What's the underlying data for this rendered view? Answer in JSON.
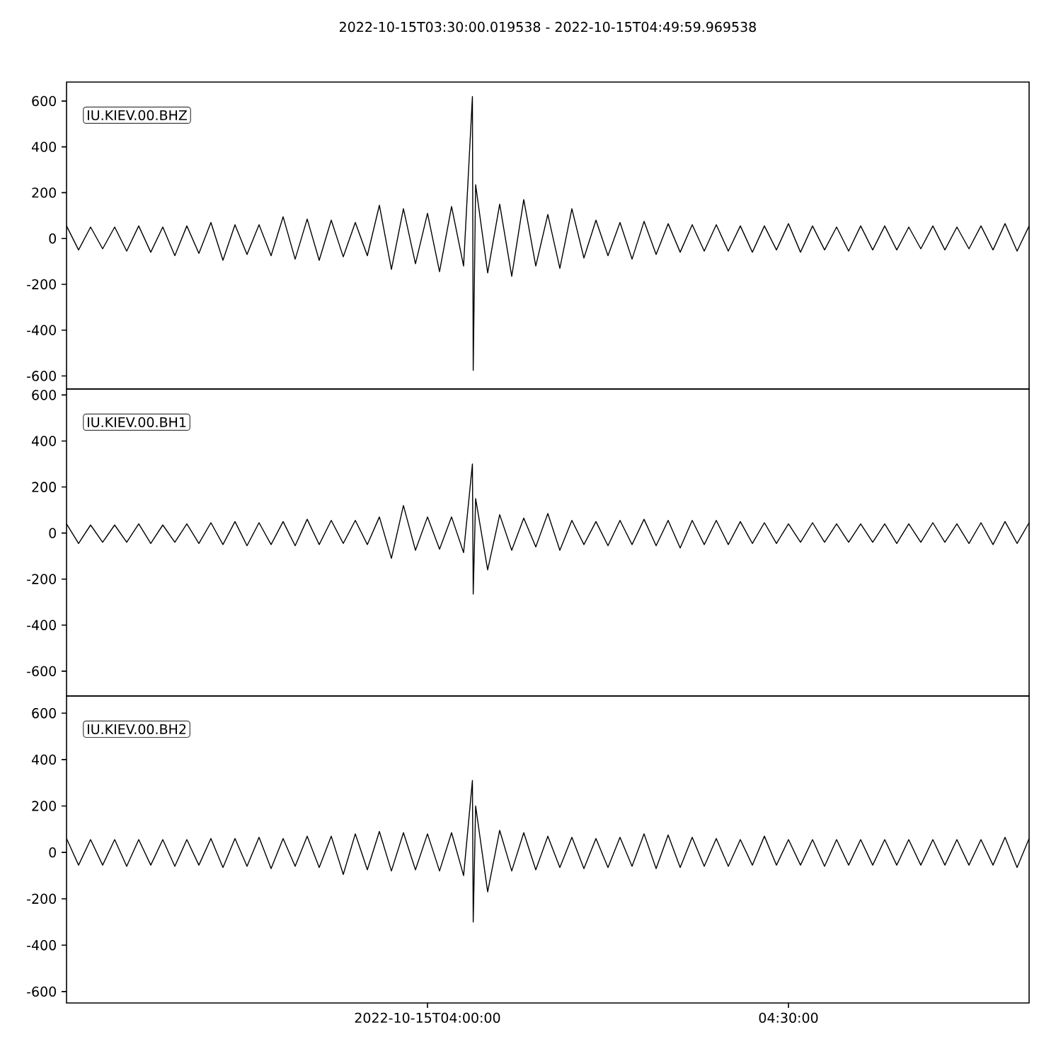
{
  "chart_data": [
    {
      "type": "line",
      "title": "2022-10-15T03:30:00.019538  -  2022-10-15T04:49:59.969538",
      "annotations": [
        "IU.KIEV.00.BHZ"
      ],
      "tick_labels": "y",
      "x": [
        "2022-10-15T03:30",
        "2022-10-15T03:31",
        "2022-10-15T03:32",
        "2022-10-15T03:33",
        "2022-10-15T03:34",
        "2022-10-15T03:35",
        "2022-10-15T03:36",
        "2022-10-15T03:37",
        "2022-10-15T03:38",
        "2022-10-15T03:39",
        "2022-10-15T03:40",
        "2022-10-15T03:41",
        "2022-10-15T03:42",
        "2022-10-15T03:43",
        "2022-10-15T03:44",
        "2022-10-15T03:45",
        "2022-10-15T03:46",
        "2022-10-15T03:47",
        "2022-10-15T03:48",
        "2022-10-15T03:49",
        "2022-10-15T03:50",
        "2022-10-15T03:51",
        "2022-10-15T03:52",
        "2022-10-15T03:53",
        "2022-10-15T03:54",
        "2022-10-15T03:55",
        "2022-10-15T03:56",
        "2022-10-15T03:57",
        "2022-10-15T03:58",
        "2022-10-15T03:59",
        "2022-10-15T04:00",
        "2022-10-15T04:01",
        "2022-10-15T04:02",
        "2022-10-15T04:03",
        "2022-10-15T04:03:44",
        "2022-10-15T04:03:48",
        "2022-10-15T04:04",
        "2022-10-15T04:05",
        "2022-10-15T04:06",
        "2022-10-15T04:07",
        "2022-10-15T04:08",
        "2022-10-15T04:09",
        "2022-10-15T04:10",
        "2022-10-15T04:11",
        "2022-10-15T04:12",
        "2022-10-15T04:13",
        "2022-10-15T04:14",
        "2022-10-15T04:15",
        "2022-10-15T04:16",
        "2022-10-15T04:17",
        "2022-10-15T04:18",
        "2022-10-15T04:19",
        "2022-10-15T04:20",
        "2022-10-15T04:21",
        "2022-10-15T04:22",
        "2022-10-15T04:23",
        "2022-10-15T04:24",
        "2022-10-15T04:25",
        "2022-10-15T04:26",
        "2022-10-15T04:27",
        "2022-10-15T04:28",
        "2022-10-15T04:29",
        "2022-10-15T04:30",
        "2022-10-15T04:31",
        "2022-10-15T04:32",
        "2022-10-15T04:33",
        "2022-10-15T04:34",
        "2022-10-15T04:35",
        "2022-10-15T04:36",
        "2022-10-15T04:37",
        "2022-10-15T04:38",
        "2022-10-15T04:39",
        "2022-10-15T04:40",
        "2022-10-15T04:41",
        "2022-10-15T04:42",
        "2022-10-15T04:43",
        "2022-10-15T04:44",
        "2022-10-15T04:45",
        "2022-10-15T04:46",
        "2022-10-15T04:47",
        "2022-10-15T04:48",
        "2022-10-15T04:49",
        "2022-10-15T04:50"
      ],
      "series": [
        {
          "color": "#000000",
          "values": [
            55,
            -50,
            50,
            -45,
            50,
            -55,
            55,
            -60,
            50,
            -75,
            55,
            -65,
            70,
            -95,
            60,
            -70,
            60,
            -75,
            95,
            -90,
            85,
            -95,
            80,
            -80,
            70,
            -75,
            145,
            -135,
            130,
            -110,
            110,
            -145,
            140,
            -120,
            620,
            -575,
            235,
            -150,
            150,
            -165,
            170,
            -120,
            105,
            -130,
            130,
            -85,
            80,
            -75,
            70,
            -90,
            75,
            -70,
            65,
            -60,
            60,
            -55,
            60,
            -55,
            55,
            -60,
            55,
            -50,
            65,
            -60,
            55,
            -50,
            50,
            -55,
            55,
            -50,
            55,
            -50,
            50,
            -45,
            55,
            -50,
            50,
            -45,
            55,
            -50,
            65,
            -55,
            55
          ]
        }
      ],
      "xlim": [
        "2022-10-15T03:30",
        "2022-10-15T04:50"
      ],
      "ylim": [
        -657,
        683
      ],
      "yticks": [
        -600,
        -400,
        -200,
        0,
        200,
        400,
        600
      ]
    },
    {
      "type": "line",
      "annotations": [
        "IU.KIEV.00.BH1"
      ],
      "tick_labels": "y",
      "x": [
        "2022-10-15T03:30",
        "2022-10-15T03:31",
        "2022-10-15T03:32",
        "2022-10-15T03:33",
        "2022-10-15T03:34",
        "2022-10-15T03:35",
        "2022-10-15T03:36",
        "2022-10-15T03:37",
        "2022-10-15T03:38",
        "2022-10-15T03:39",
        "2022-10-15T03:40",
        "2022-10-15T03:41",
        "2022-10-15T03:42",
        "2022-10-15T03:43",
        "2022-10-15T03:44",
        "2022-10-15T03:45",
        "2022-10-15T03:46",
        "2022-10-15T03:47",
        "2022-10-15T03:48",
        "2022-10-15T03:49",
        "2022-10-15T03:50",
        "2022-10-15T03:51",
        "2022-10-15T03:52",
        "2022-10-15T03:53",
        "2022-10-15T03:54",
        "2022-10-15T03:55",
        "2022-10-15T03:56",
        "2022-10-15T03:57",
        "2022-10-15T03:58",
        "2022-10-15T03:59",
        "2022-10-15T04:00",
        "2022-10-15T04:01",
        "2022-10-15T04:02",
        "2022-10-15T04:03",
        "2022-10-15T04:03:44",
        "2022-10-15T04:03:48",
        "2022-10-15T04:04",
        "2022-10-15T04:05",
        "2022-10-15T04:06",
        "2022-10-15T04:07",
        "2022-10-15T04:08",
        "2022-10-15T04:09",
        "2022-10-15T04:10",
        "2022-10-15T04:11",
        "2022-10-15T04:12",
        "2022-10-15T04:13",
        "2022-10-15T04:14",
        "2022-10-15T04:15",
        "2022-10-15T04:16",
        "2022-10-15T04:17",
        "2022-10-15T04:18",
        "2022-10-15T04:19",
        "2022-10-15T04:20",
        "2022-10-15T04:21",
        "2022-10-15T04:22",
        "2022-10-15T04:23",
        "2022-10-15T04:24",
        "2022-10-15T04:25",
        "2022-10-15T04:26",
        "2022-10-15T04:27",
        "2022-10-15T04:28",
        "2022-10-15T04:29",
        "2022-10-15T04:30",
        "2022-10-15T04:31",
        "2022-10-15T04:32",
        "2022-10-15T04:33",
        "2022-10-15T04:34",
        "2022-10-15T04:35",
        "2022-10-15T04:36",
        "2022-10-15T04:37",
        "2022-10-15T04:38",
        "2022-10-15T04:39",
        "2022-10-15T04:40",
        "2022-10-15T04:41",
        "2022-10-15T04:42",
        "2022-10-15T04:43",
        "2022-10-15T04:44",
        "2022-10-15T04:45",
        "2022-10-15T04:46",
        "2022-10-15T04:47",
        "2022-10-15T04:48",
        "2022-10-15T04:49",
        "2022-10-15T04:50"
      ],
      "series": [
        {
          "color": "#000000",
          "values": [
            40,
            -45,
            35,
            -40,
            35,
            -40,
            40,
            -45,
            35,
            -40,
            40,
            -45,
            45,
            -50,
            50,
            -55,
            45,
            -50,
            50,
            -55,
            60,
            -50,
            55,
            -45,
            55,
            -50,
            70,
            -110,
            120,
            -75,
            70,
            -70,
            70,
            -85,
            300,
            -265,
            150,
            -160,
            80,
            -75,
            65,
            -60,
            85,
            -75,
            55,
            -50,
            50,
            -55,
            55,
            -50,
            60,
            -55,
            55,
            -65,
            55,
            -50,
            55,
            -50,
            50,
            -45,
            45,
            -45,
            40,
            -40,
            45,
            -40,
            40,
            -40,
            40,
            -40,
            40,
            -45,
            40,
            -40,
            45,
            -40,
            40,
            -45,
            45,
            -50,
            50,
            -45,
            45
          ]
        }
      ],
      "xlim": [
        "2022-10-15T03:30",
        "2022-10-15T04:50"
      ],
      "ylim": [
        -708,
        626
      ],
      "yticks": [
        -600,
        -400,
        -200,
        0,
        200,
        400,
        600
      ]
    },
    {
      "type": "line",
      "annotations": [
        "IU.KIEV.00.BH2"
      ],
      "x": [
        "2022-10-15T03:30",
        "2022-10-15T03:31",
        "2022-10-15T03:32",
        "2022-10-15T03:33",
        "2022-10-15T03:34",
        "2022-10-15T03:35",
        "2022-10-15T03:36",
        "2022-10-15T03:37",
        "2022-10-15T03:38",
        "2022-10-15T03:39",
        "2022-10-15T03:40",
        "2022-10-15T03:41",
        "2022-10-15T03:42",
        "2022-10-15T03:43",
        "2022-10-15T03:44",
        "2022-10-15T03:45",
        "2022-10-15T03:46",
        "2022-10-15T03:47",
        "2022-10-15T03:48",
        "2022-10-15T03:49",
        "2022-10-15T03:50",
        "2022-10-15T03:51",
        "2022-10-15T03:52",
        "2022-10-15T03:53",
        "2022-10-15T03:54",
        "2022-10-15T03:55",
        "2022-10-15T03:56",
        "2022-10-15T03:57",
        "2022-10-15T03:58",
        "2022-10-15T03:59",
        "2022-10-15T04:00",
        "2022-10-15T04:01",
        "2022-10-15T04:02",
        "2022-10-15T04:03",
        "2022-10-15T04:03:44",
        "2022-10-15T04:03:48",
        "2022-10-15T04:04",
        "2022-10-15T04:05",
        "2022-10-15T04:06",
        "2022-10-15T04:07",
        "2022-10-15T04:08",
        "2022-10-15T04:09",
        "2022-10-15T04:10",
        "2022-10-15T04:11",
        "2022-10-15T04:12",
        "2022-10-15T04:13",
        "2022-10-15T04:14",
        "2022-10-15T04:15",
        "2022-10-15T04:16",
        "2022-10-15T04:17",
        "2022-10-15T04:18",
        "2022-10-15T04:19",
        "2022-10-15T04:20",
        "2022-10-15T04:21",
        "2022-10-15T04:22",
        "2022-10-15T04:23",
        "2022-10-15T04:24",
        "2022-10-15T04:25",
        "2022-10-15T04:26",
        "2022-10-15T04:27",
        "2022-10-15T04:28",
        "2022-10-15T04:29",
        "2022-10-15T04:30",
        "2022-10-15T04:31",
        "2022-10-15T04:32",
        "2022-10-15T04:33",
        "2022-10-15T04:34",
        "2022-10-15T04:35",
        "2022-10-15T04:36",
        "2022-10-15T04:37",
        "2022-10-15T04:38",
        "2022-10-15T04:39",
        "2022-10-15T04:40",
        "2022-10-15T04:41",
        "2022-10-15T04:42",
        "2022-10-15T04:43",
        "2022-10-15T04:44",
        "2022-10-15T04:45",
        "2022-10-15T04:46",
        "2022-10-15T04:47",
        "2022-10-15T04:48",
        "2022-10-15T04:49",
        "2022-10-15T04:50"
      ],
      "series": [
        {
          "color": "#000000",
          "values": [
            60,
            -55,
            55,
            -55,
            55,
            -60,
            55,
            -55,
            55,
            -60,
            55,
            -55,
            60,
            -65,
            60,
            -60,
            65,
            -70,
            60,
            -60,
            70,
            -65,
            70,
            -95,
            80,
            -75,
            90,
            -80,
            85,
            -75,
            80,
            -80,
            85,
            -100,
            310,
            -300,
            200,
            -170,
            95,
            -80,
            85,
            -75,
            70,
            -65,
            65,
            -70,
            60,
            -65,
            65,
            -60,
            80,
            -70,
            75,
            -65,
            65,
            -60,
            60,
            -60,
            55,
            -55,
            70,
            -55,
            55,
            -55,
            55,
            -60,
            55,
            -55,
            55,
            -55,
            55,
            -55,
            55,
            -55,
            55,
            -55,
            55,
            -55,
            55,
            -55,
            65,
            -65,
            60
          ]
        }
      ],
      "xlim": [
        "2022-10-15T03:30",
        "2022-10-15T04:50"
      ],
      "ylim": [
        -649,
        674
      ],
      "yticks": [
        -600,
        -400,
        -200,
        0,
        200,
        400,
        600
      ],
      "xticks": [
        {
          "value": "2022-10-15T04:00",
          "label": "2022-10-15T04:00:00"
        },
        {
          "value": "2022-10-15T04:30",
          "label": "04:30:00"
        }
      ]
    }
  ]
}
